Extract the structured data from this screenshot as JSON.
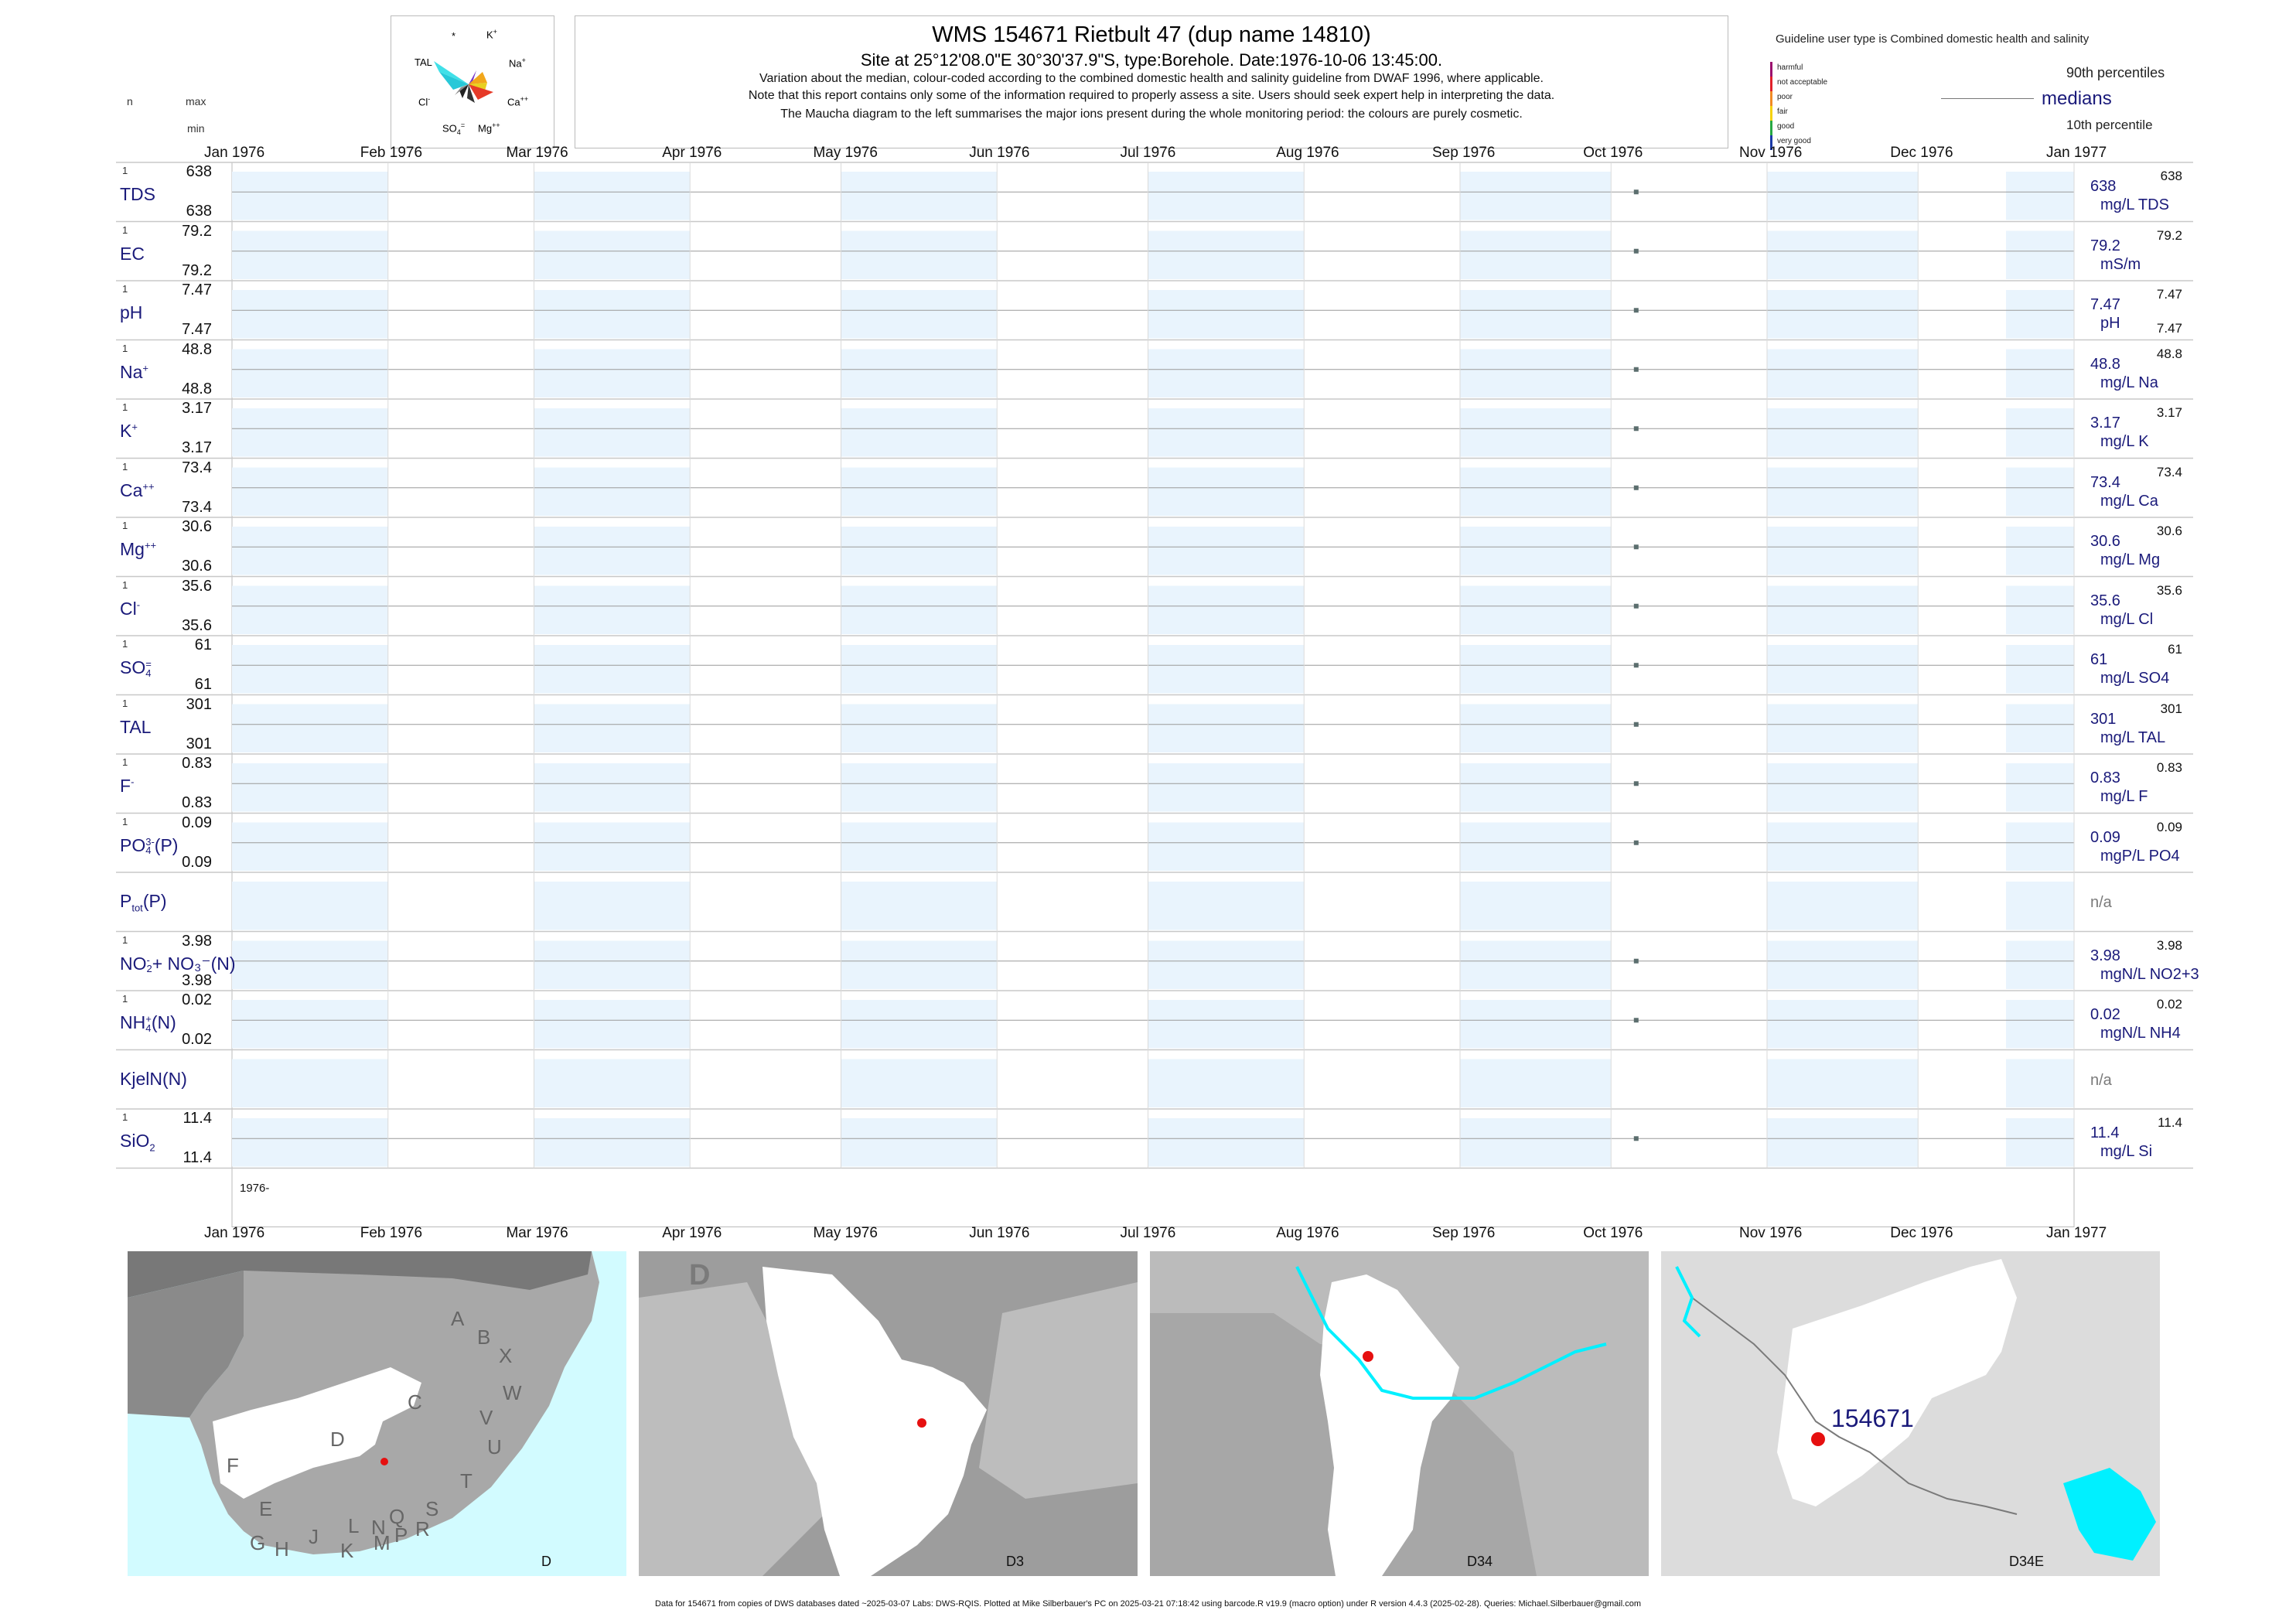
{
  "header": {
    "title": "WMS 154671  Rietbult 47 (dup name 14810)",
    "subtitle": "Site at 25°12'08.0\"E 30°30'37.9\"S, type:Borehole. Date:1976-10-06 13:45:00.",
    "note_lines": [
      "Variation about the median,  colour-coded according to the combined domestic health and salinity guideline from DWAF 1996, where applicable.",
      "Note that this report contains only some of the information required to properly assess a site. Users should seek expert help in interpreting the data.",
      "The Maucha diagram to the left summarises the major ions present during the whole monitoring period: the colours are purely cosmetic."
    ]
  },
  "col_headers": {
    "n": "n",
    "max": "max",
    "min": "min"
  },
  "maucha": {
    "labels": {
      "star": "*",
      "k": "K+",
      "tal": "TAL",
      "na": "Na+",
      "cl": "Cl-",
      "ca": "Ca++",
      "so4": "SO4=",
      "mg": "Mg++"
    }
  },
  "legend": {
    "guideline_title": "Guideline user type is Combined domestic health and salinity",
    "categories": [
      {
        "label": "harmful",
        "color": "#9b0f6e"
      },
      {
        "label": "not acceptable",
        "color": "#e0202a"
      },
      {
        "label": "poor",
        "color": "#f08a24"
      },
      {
        "label": "fair",
        "color": "#f5d10a"
      },
      {
        "label": "good",
        "color": "#27a844"
      },
      {
        "label": "very good",
        "color": "#1a3aa8"
      }
    ],
    "p90": "90th percentiles",
    "medians": "medians",
    "p10": "10th percentile"
  },
  "chart_data": {
    "type": "scatter",
    "x_axis": {
      "start": "1976-01-01",
      "end": "1977-01-01",
      "tick_labels": [
        "Jan 1976",
        "Feb 1976",
        "Mar 1976",
        "Apr 1976",
        "May 1976",
        "Jun 1976",
        "Jul 1976",
        "Aug 1976",
        "Sep 1976",
        "Oct 1976",
        "Nov 1976",
        "Dec 1976",
        "Jan 1977"
      ],
      "year_label": "1976-"
    },
    "sample_date": "1976-10-06",
    "variables": [
      {
        "label": "TDS",
        "sup": "",
        "sub": "",
        "suffix": "",
        "n": "1",
        "max": "638",
        "min": "638",
        "median": "638",
        "p90": "638",
        "p10": "",
        "unit": "mg/L TDS"
      },
      {
        "label": "EC",
        "sup": "",
        "sub": "",
        "suffix": "",
        "n": "1",
        "max": "79.2",
        "min": "79.2",
        "median": "79.2",
        "p90": "79.2",
        "p10": "",
        "unit": "mS/m"
      },
      {
        "label": "pH",
        "sup": "",
        "sub": "",
        "suffix": "",
        "n": "1",
        "max": "7.47",
        "min": "7.47",
        "median": "7.47",
        "p90": "7.47",
        "p10": "7.47",
        "unit": "pH"
      },
      {
        "label": "Na",
        "sup": "+",
        "sub": "",
        "suffix": "",
        "n": "1",
        "max": "48.8",
        "min": "48.8",
        "median": "48.8",
        "p90": "48.8",
        "p10": "",
        "unit": "mg/L Na"
      },
      {
        "label": "K",
        "sup": "+",
        "sub": "",
        "suffix": "",
        "n": "1",
        "max": "3.17",
        "min": "3.17",
        "median": "3.17",
        "p90": "3.17",
        "p10": "",
        "unit": "mg/L K"
      },
      {
        "label": "Ca",
        "sup": "++",
        "sub": "",
        "suffix": "",
        "n": "1",
        "max": "73.4",
        "min": "73.4",
        "median": "73.4",
        "p90": "73.4",
        "p10": "",
        "unit": "mg/L Ca"
      },
      {
        "label": "Mg",
        "sup": "++",
        "sub": "",
        "suffix": "",
        "n": "1",
        "max": "30.6",
        "min": "30.6",
        "median": "30.6",
        "p90": "30.6",
        "p10": "",
        "unit": "mg/L Mg"
      },
      {
        "label": "Cl",
        "sup": "-",
        "sub": "",
        "suffix": "",
        "n": "1",
        "max": "35.6",
        "min": "35.6",
        "median": "35.6",
        "p90": "35.6",
        "p10": "",
        "unit": "mg/L Cl"
      },
      {
        "label": "SO",
        "sup": "=",
        "sub": "4",
        "suffix": "",
        "n": "1",
        "max": "61",
        "min": "61",
        "median": "61",
        "p90": "61",
        "p10": "",
        "unit": "mg/L SO4"
      },
      {
        "label": "TAL",
        "sup": "",
        "sub": "",
        "suffix": "",
        "n": "1",
        "max": "301",
        "min": "301",
        "median": "301",
        "p90": "301",
        "p10": "",
        "unit": "mg/L TAL"
      },
      {
        "label": "F",
        "sup": "-",
        "sub": "",
        "suffix": "",
        "n": "1",
        "max": "0.83",
        "min": "0.83",
        "median": "0.83",
        "p90": "0.83",
        "p10": "",
        "unit": "mg/L F"
      },
      {
        "label": "PO",
        "sup": "3-",
        "sub": "4",
        "suffix": "(P)",
        "n": "1",
        "max": "0.09",
        "min": "0.09",
        "median": "0.09",
        "p90": "0.09",
        "p10": "",
        "unit": "mgP/L PO4"
      },
      {
        "label": "P",
        "sup": "",
        "sub": "tot",
        "suffix": "(P)",
        "n": "",
        "max": "",
        "min": "",
        "median": "n/a",
        "p90": "",
        "p10": "",
        "unit": ""
      },
      {
        "label": "NO",
        "sup": "-",
        "sub": "2",
        "suffix": "+ NO₃⁻(N)",
        "n": "1",
        "max": "3.98",
        "min": "3.98",
        "median": "3.98",
        "p90": "3.98",
        "p10": "",
        "unit": "mgN/L NO2+3"
      },
      {
        "label": "NH",
        "sup": "+",
        "sub": "4",
        "suffix": "(N)",
        "n": "1",
        "max": "0.02",
        "min": "0.02",
        "median": "0.02",
        "p90": "0.02",
        "p10": "",
        "unit": "mgN/L NH4"
      },
      {
        "label": "KjelN(N)",
        "sup": "",
        "sub": "",
        "suffix": "",
        "n": "",
        "max": "",
        "min": "",
        "median": "n/a",
        "p90": "",
        "p10": "",
        "unit": ""
      },
      {
        "label": "SiO",
        "sup": "",
        "sub": "2",
        "suffix": "",
        "n": "1",
        "max": "11.4",
        "min": "11.4",
        "median": "11.4",
        "p90": "11.4",
        "p10": "",
        "unit": "mg/L Si"
      }
    ]
  },
  "maps": [
    {
      "caption": "D",
      "region_letters": [
        "A",
        "B",
        "X",
        "W",
        "C",
        "V",
        "U",
        "T",
        "D",
        "F",
        "E",
        "G",
        "H",
        "J",
        "K",
        "L",
        "M",
        "N",
        "P",
        "Q",
        "R",
        "S"
      ]
    },
    {
      "caption": "D3",
      "corner_letter": "D"
    },
    {
      "caption": "D34"
    },
    {
      "caption": "D34E",
      "site_label": "154671"
    }
  ],
  "footer": "Data for 154671 from copies of DWS databases dated ~2025-03-07 Labs: DWS-RQIS. Plotted at Mike Silberbauer's PC on 2025-03-21 07:18:42 using barcode.R v19.9 (macro option) under R version 4.4.3 (2025-02-28). Queries: Michael.Silberbauer@gmail.com"
}
